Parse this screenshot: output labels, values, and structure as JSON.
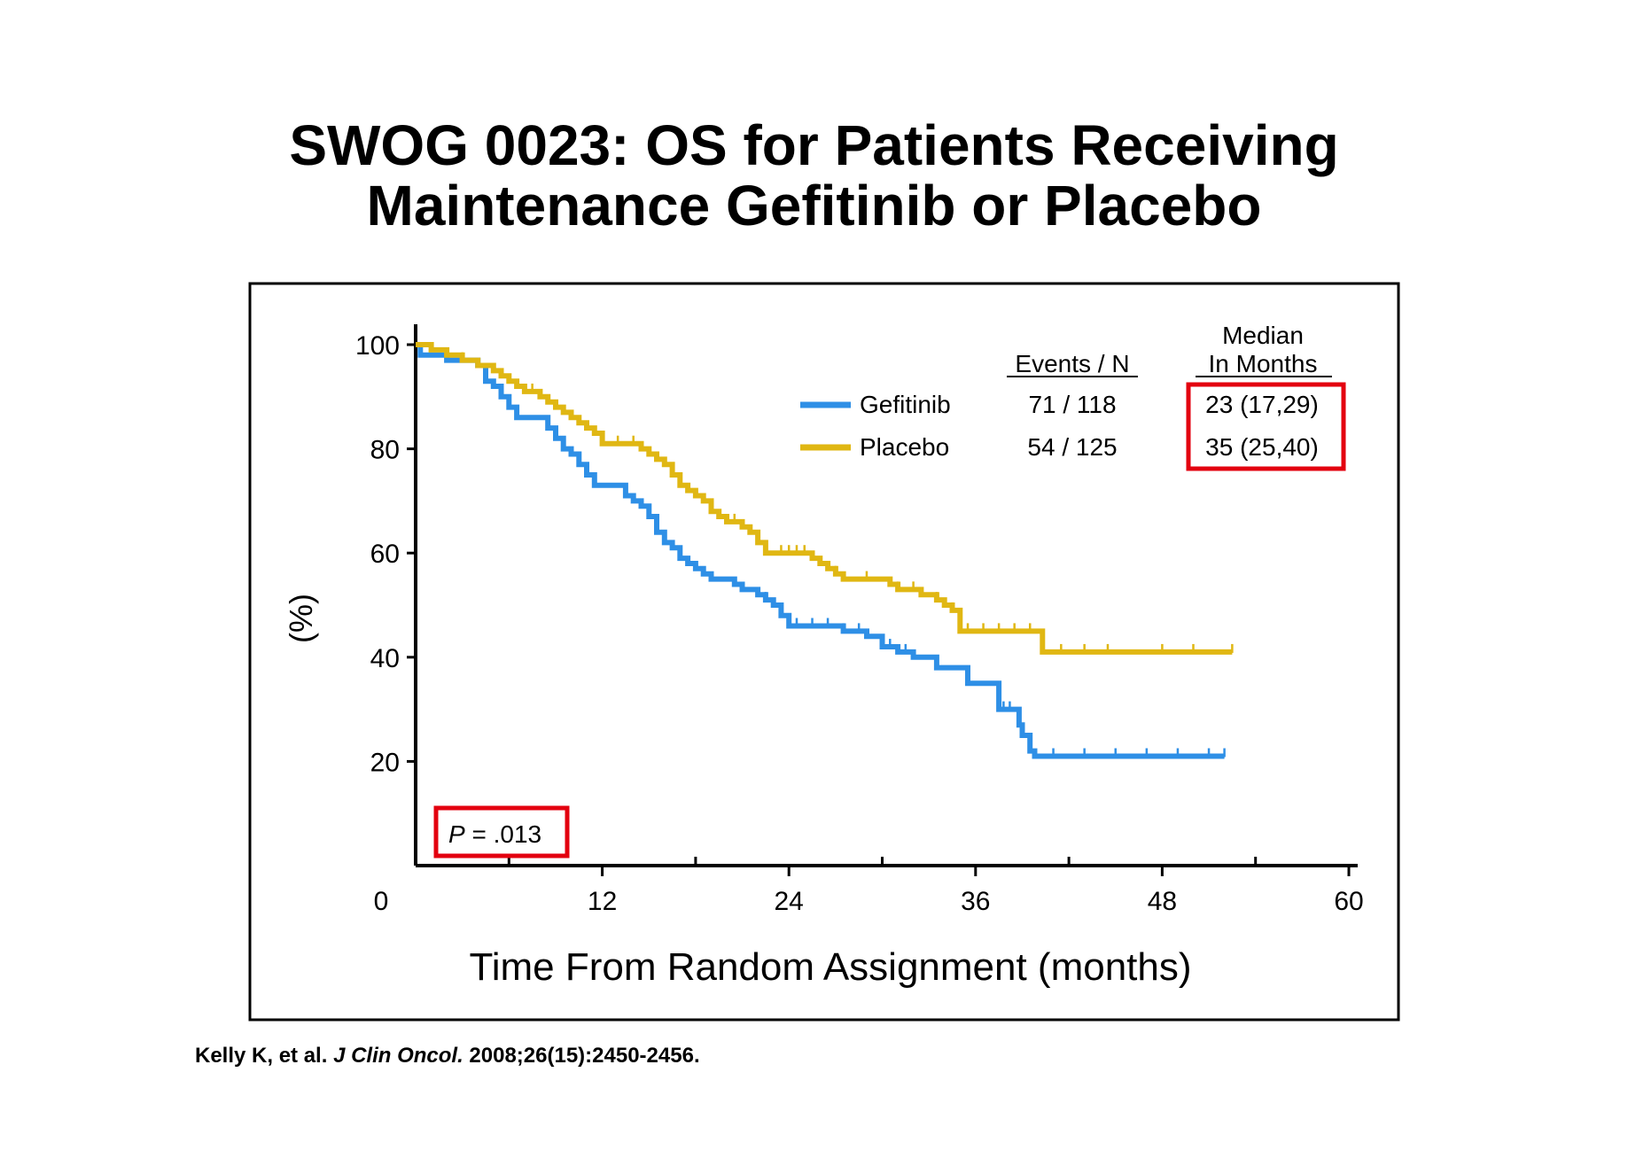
{
  "slide": {
    "title_line1": "SWOG 0023: OS for Patients Receiving",
    "title_line2": "Maintenance Gefitinib or Placebo",
    "citation": {
      "authors": "Kelly K, et al. ",
      "journal": "J Clin Oncol.",
      "details": " 2008;26(15):2450-2456."
    }
  },
  "chart_data": {
    "type": "line",
    "xlabel": "Time From Random Assignment (months)",
    "ylabel": "(%)",
    "xlim": [
      0,
      60
    ],
    "ylim": [
      0,
      100
    ],
    "x_ticks": [
      0,
      12,
      24,
      36,
      48,
      60
    ],
    "y_ticks": [
      20,
      40,
      60,
      80,
      100
    ],
    "grid": false,
    "legend_position": "top-right",
    "table_headers": {
      "events": "Events / N",
      "median_line1": "Median",
      "median_line2": "In Months"
    },
    "p_value_label": "P",
    "p_value_text": " = .013",
    "series": [
      {
        "name": "Gefitinib",
        "color": "#2e8fe6",
        "events_n": "71 / 118",
        "median": "23 (17,29)",
        "points": [
          [
            0,
            100
          ],
          [
            0.3,
            98
          ],
          [
            1,
            98
          ],
          [
            2,
            97
          ],
          [
            3,
            97
          ],
          [
            4,
            96
          ],
          [
            4.5,
            93
          ],
          [
            5,
            92
          ],
          [
            5.5,
            90
          ],
          [
            6,
            88
          ],
          [
            6.5,
            86
          ],
          [
            8,
            86
          ],
          [
            8.5,
            84
          ],
          [
            9,
            82
          ],
          [
            9.5,
            80
          ],
          [
            10,
            79
          ],
          [
            10.5,
            77
          ],
          [
            11,
            75
          ],
          [
            11.5,
            73
          ],
          [
            13,
            73
          ],
          [
            13.5,
            71
          ],
          [
            14,
            70
          ],
          [
            14.5,
            69
          ],
          [
            15,
            67
          ],
          [
            15.5,
            64
          ],
          [
            16,
            62
          ],
          [
            16.5,
            61
          ],
          [
            17,
            59
          ],
          [
            17.5,
            58
          ],
          [
            18,
            57
          ],
          [
            18.5,
            56
          ],
          [
            19,
            55
          ],
          [
            20,
            55
          ],
          [
            20.5,
            54
          ],
          [
            21,
            53
          ],
          [
            22,
            52
          ],
          [
            22.5,
            51
          ],
          [
            23,
            50
          ],
          [
            23.5,
            48
          ],
          [
            24,
            46
          ],
          [
            27,
            46
          ],
          [
            27.5,
            45
          ],
          [
            28.5,
            45
          ],
          [
            29,
            44
          ],
          [
            30,
            42
          ],
          [
            31,
            41
          ],
          [
            32,
            40
          ],
          [
            33,
            40
          ],
          [
            33.5,
            38
          ],
          [
            35,
            38
          ],
          [
            35.5,
            35
          ],
          [
            37,
            35
          ],
          [
            37.5,
            30
          ],
          [
            38.5,
            30
          ],
          [
            38.8,
            27
          ],
          [
            39,
            25
          ],
          [
            39.5,
            22
          ],
          [
            39.8,
            21
          ],
          [
            52,
            21
          ]
        ],
        "censor_x": [
          22.5,
          24.5,
          25.5,
          26.5,
          27.5,
          28.5,
          30.5,
          31.5,
          35.5,
          37.8,
          38.2,
          39.5,
          41,
          43,
          45,
          47,
          49,
          51,
          52
        ]
      },
      {
        "name": "Placebo",
        "color": "#e0b713",
        "events_n": "54 / 125",
        "median": "35 (25,40)",
        "points": [
          [
            0,
            100
          ],
          [
            1,
            99
          ],
          [
            2,
            98
          ],
          [
            3,
            97
          ],
          [
            4,
            96
          ],
          [
            5,
            95
          ],
          [
            5.5,
            94
          ],
          [
            6,
            93
          ],
          [
            6.5,
            92
          ],
          [
            7,
            91
          ],
          [
            8,
            90
          ],
          [
            8.5,
            89
          ],
          [
            9,
            88
          ],
          [
            9.5,
            87
          ],
          [
            10,
            86
          ],
          [
            10.5,
            85
          ],
          [
            11,
            84
          ],
          [
            11.5,
            83
          ],
          [
            12,
            81
          ],
          [
            14,
            81
          ],
          [
            14.5,
            80
          ],
          [
            15,
            79
          ],
          [
            15.5,
            78
          ],
          [
            16,
            77
          ],
          [
            16.5,
            75
          ],
          [
            17,
            73
          ],
          [
            17.5,
            72
          ],
          [
            18,
            71
          ],
          [
            18.5,
            70
          ],
          [
            19,
            68
          ],
          [
            19.5,
            67
          ],
          [
            20,
            66
          ],
          [
            21,
            65
          ],
          [
            21.5,
            64
          ],
          [
            22,
            62
          ],
          [
            22.5,
            60
          ],
          [
            25,
            60
          ],
          [
            25.5,
            59
          ],
          [
            26,
            58
          ],
          [
            26.5,
            57
          ],
          [
            27,
            56
          ],
          [
            27.5,
            55
          ],
          [
            30,
            55
          ],
          [
            30.5,
            54
          ],
          [
            31,
            53
          ],
          [
            32,
            53
          ],
          [
            32.5,
            52
          ],
          [
            33,
            52
          ],
          [
            33.5,
            51
          ],
          [
            34,
            50
          ],
          [
            34.5,
            49
          ],
          [
            35,
            45
          ],
          [
            40,
            45
          ],
          [
            40.3,
            41
          ],
          [
            52.5,
            41
          ]
        ],
        "censor_x": [
          3,
          7.5,
          13,
          14,
          17,
          20.5,
          23.5,
          24,
          24.5,
          25,
          27,
          29,
          31,
          32,
          33.5,
          34.5,
          35.5,
          36.5,
          37.5,
          38.5,
          39.5,
          41.5,
          43,
          44.5,
          48,
          50,
          52.5
        ]
      }
    ]
  }
}
